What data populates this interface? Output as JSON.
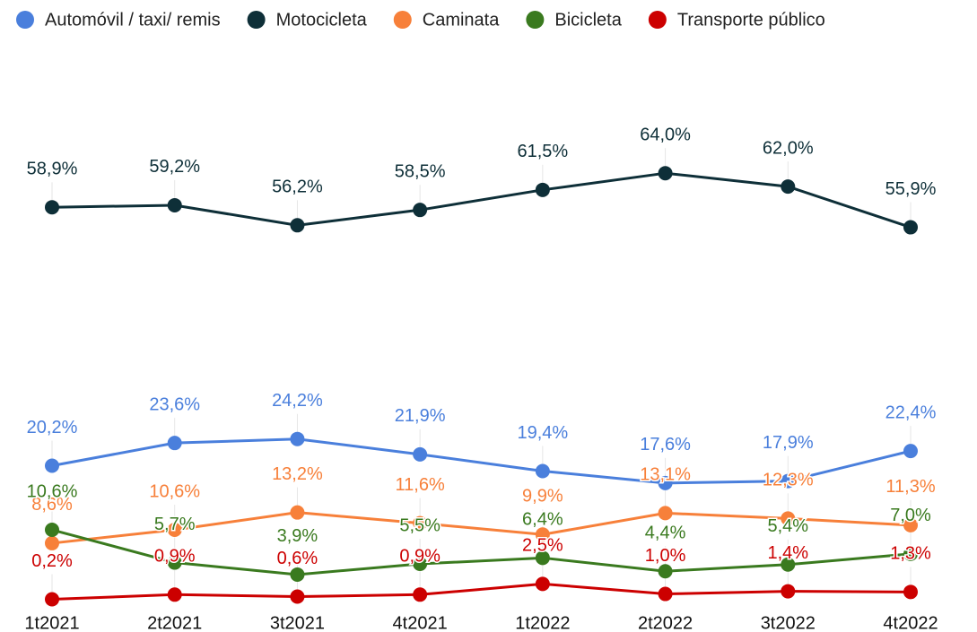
{
  "chart_data": {
    "type": "line",
    "categories": [
      "1t2021",
      "2t2021",
      "3t2021",
      "4t2021",
      "1t2022",
      "2t2022",
      "3t2022",
      "4t2022"
    ],
    "series": [
      {
        "name": "Automóvil / taxi/ remis",
        "color": "#4a7fdc",
        "values": [
          20.2,
          23.6,
          24.2,
          21.9,
          19.4,
          17.6,
          17.9,
          22.4
        ],
        "value_labels": [
          "20,2%",
          "23,6%",
          "24,2%",
          "21,9%",
          "19,4%",
          "17,6%",
          "17,9%",
          "22,4%"
        ]
      },
      {
        "name": "Motocicleta",
        "color": "#0e2f38",
        "values": [
          58.9,
          59.2,
          56.2,
          58.5,
          61.5,
          64.0,
          62.0,
          55.9
        ],
        "value_labels": [
          "58,9%",
          "59,2%",
          "56,2%",
          "58,5%",
          "61,5%",
          "64,0%",
          "62,0%",
          "55,9%"
        ]
      },
      {
        "name": "Caminata",
        "color": "#f7803a",
        "values": [
          8.6,
          10.6,
          13.2,
          11.6,
          9.9,
          13.1,
          12.3,
          11.3
        ],
        "value_labels": [
          "8,6%",
          "10,6%",
          "13,2%",
          "11,6%",
          "9,9%",
          "13,1%",
          "12,3%",
          "11,3%"
        ]
      },
      {
        "name": "Bicicleta",
        "color": "#3a7a1f",
        "values": [
          10.6,
          5.7,
          3.9,
          5.5,
          6.4,
          4.4,
          5.4,
          7.0
        ],
        "value_labels": [
          "10,6%",
          "5,7%",
          "3,9%",
          "5,5%",
          "6,4%",
          "4,4%",
          "5,4%",
          "7,0%"
        ]
      },
      {
        "name": "Transporte público",
        "color": "#cc0000",
        "values": [
          0.2,
          0.9,
          0.6,
          0.9,
          2.5,
          1.0,
          1.4,
          1.3
        ],
        "value_labels": [
          "0,2%",
          "0,9%",
          "0,6%",
          "0,9%",
          "2,5%",
          "1,0%",
          "1,4%",
          "1,3%"
        ]
      }
    ],
    "legend": "top"
  }
}
